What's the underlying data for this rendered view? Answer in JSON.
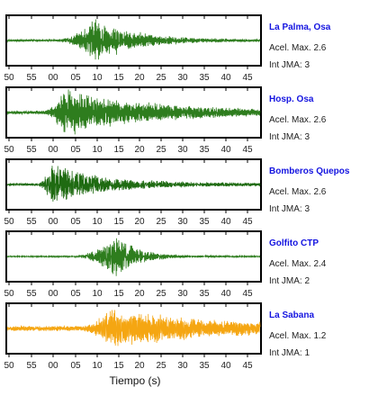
{
  "chart_data": {
    "type": "line",
    "xlabel": "Tiempo (s)",
    "x_tick_labels": [
      "50",
      "55",
      "00",
      "05",
      "10",
      "15",
      "20",
      "25",
      "30",
      "35",
      "40",
      "45"
    ],
    "colors": {
      "station_name": "#1414e0",
      "panel_frame": "#000000"
    },
    "panels": [
      {
        "station": "La Palma, Osa",
        "pga_label": "Acel. Max. 2.6",
        "jma_label": "Int JMA: 3",
        "pga": 2.6,
        "jma": 3,
        "trace_color": "#2e7d1e",
        "show_tick_labels": true,
        "amplitude": 0.92,
        "peak_s": 20,
        "rise": 9,
        "decay": 0.11,
        "noise": 0.05,
        "freq": 2.3,
        "seed": 11
      },
      {
        "station": "Hosp. Osa",
        "pga_label": "Acel. Max. 2.6",
        "jma_label": "Int JMA: 3",
        "pga": 2.6,
        "jma": 3,
        "trace_color": "#2e7d1e",
        "show_tick_labels": true,
        "amplitude": 0.95,
        "peak_s": 13,
        "rise": 5,
        "decay": 0.05,
        "noise": 0.08,
        "freq": 2.1,
        "seed": 23
      },
      {
        "station": "Bomberos Quepos",
        "pga_label": "Acel. Max. 2.6",
        "jma_label": "Int JMA: 3",
        "pga": 2.6,
        "jma": 3,
        "trace_color": "#1f6b12",
        "show_tick_labels": true,
        "amplitude": 0.95,
        "peak_s": 10,
        "rise": 3,
        "decay": 0.09,
        "noise": 0.07,
        "freq": 2.8,
        "seed": 37
      },
      {
        "station": "Golfito CTP",
        "pga_label": "Acel. Max. 2.4",
        "jma_label": "Int JMA: 2",
        "pga": 2.4,
        "jma": 2,
        "trace_color": "#2e7d1e",
        "show_tick_labels": true,
        "amplitude": 0.95,
        "peak_s": 25,
        "rise": 10,
        "decay": 0.2,
        "noise": 0.03,
        "freq": 2.5,
        "seed": 51
      },
      {
        "station": "La Sabana",
        "pga_label": "Acel. Max. 1.2",
        "jma_label": "Int JMA: 1",
        "pga": 1.2,
        "jma": 1,
        "trace_color": "#f5a612",
        "show_tick_labels": true,
        "amplitude": 0.9,
        "peak_s": 24,
        "rise": 8,
        "decay": 0.045,
        "noise": 0.12,
        "freq": 1.9,
        "seed": 67
      }
    ]
  }
}
